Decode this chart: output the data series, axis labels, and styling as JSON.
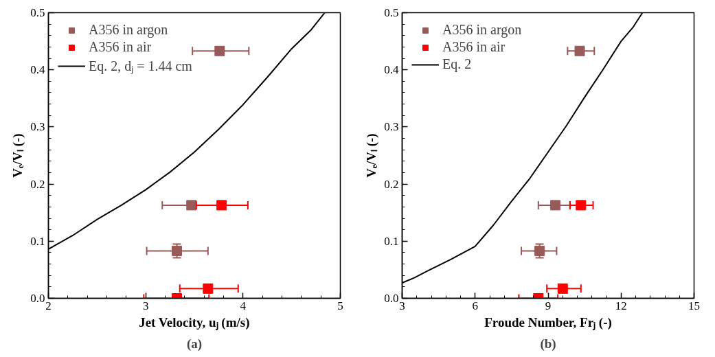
{
  "chart_data": [
    {
      "type": "scatter",
      "xlabel": "Jet Velocity, uⱼ (m/s)",
      "ylabel": "Vₑ/Vₗ (-)",
      "annotations": [
        "(a)"
      ],
      "xlim": [
        2,
        5
      ],
      "xticks": [
        2,
        3,
        4,
        5
      ],
      "ylim": [
        0,
        0.5
      ],
      "yticks": [
        {
          "value": 0,
          "label": "0.0"
        },
        {
          "value": 0.1,
          "label": "0.1"
        },
        {
          "value": 0.2,
          "label": "0.2"
        },
        {
          "value": 0.3,
          "label": "0.3"
        },
        {
          "value": 0.4,
          "label": "0.4"
        },
        {
          "value": 0.5,
          "label": "0.5"
        }
      ],
      "legend": "top left",
      "grid": false,
      "series": [
        {
          "name": "A356 in argon",
          "marker": "square",
          "color": "#985a58",
          "x": [
            3.76,
            3.47,
            3.32
          ],
          "values": [
            0.433,
            0.163,
            0.083
          ],
          "xerrors": [
            [
              3.48,
              4.06
            ],
            [
              3.17,
              3.5
            ],
            [
              3.01,
              3.64
            ]
          ],
          "errors": [
            null,
            null,
            0.012
          ]
        },
        {
          "name": "A356 in air",
          "marker": "square",
          "color": "#ff0000",
          "x": [
            3.78,
            3.64,
            3.32
          ],
          "values": [
            0.163,
            0.017,
            0.0
          ],
          "xerrors": [
            [
              3.52,
              4.05
            ],
            [
              3.35,
              3.95
            ],
            [
              2.98,
              3.65
            ]
          ]
        },
        {
          "name": "Eq. 2, dⱼ = 1.44 cm",
          "type": "line",
          "color": "#000000",
          "x": [
            2,
            2.25,
            2.5,
            2.75,
            3,
            3.25,
            3.5,
            3.75,
            4,
            4.25,
            4.5,
            4.7,
            4.84
          ],
          "values": [
            0.086,
            0.11,
            0.138,
            0.163,
            0.19,
            0.221,
            0.256,
            0.296,
            0.339,
            0.387,
            0.437,
            0.47,
            0.5
          ]
        }
      ]
    },
    {
      "type": "scatter",
      "xlabel": "Froude Number, Frⱼ (-)",
      "ylabel": "Vₑ/Vₗ (-)",
      "annotations": [
        "(b)"
      ],
      "xlim": [
        3,
        15
      ],
      "xticks": [
        3,
        6,
        9,
        12,
        15
      ],
      "ylim": [
        0,
        0.5
      ],
      "yticks": [
        {
          "value": 0,
          "label": "0.0"
        },
        {
          "value": 0.1,
          "label": "0.1"
        },
        {
          "value": 0.2,
          "label": "0.2"
        },
        {
          "value": 0.3,
          "label": "0.3"
        },
        {
          "value": 0.4,
          "label": "0.4"
        },
        {
          "value": 0.5,
          "label": "0.5"
        }
      ],
      "legend": "top left",
      "grid": false,
      "series": [
        {
          "name": "A356 in argon",
          "marker": "square",
          "color": "#985a58",
          "x": [
            10.3,
            9.3,
            8.65
          ],
          "values": [
            0.433,
            0.163,
            0.083
          ],
          "xerrors": [
            [
              9.8,
              10.9
            ],
            [
              8.6,
              9.9
            ],
            [
              7.9,
              9.35
            ]
          ],
          "errors": [
            null,
            null,
            0.012
          ]
        },
        {
          "name": "A356 in air",
          "marker": "square",
          "color": "#ff0000",
          "x": [
            10.35,
            9.6,
            8.6
          ],
          "values": [
            0.163,
            0.017,
            0.0
          ],
          "xerrors": [
            [
              9.9,
              10.85
            ],
            [
              8.95,
              10.35
            ],
            [
              7.8,
              9.4
            ]
          ]
        },
        {
          "name": "Eq. 2",
          "type": "line",
          "color": "#000000",
          "x": [
            3,
            3.5,
            4,
            5,
            6,
            6.75,
            7.5,
            8.25,
            9,
            9.75,
            10.5,
            11.25,
            12,
            12.5,
            12.88
          ],
          "values": [
            0.027,
            0.036,
            0.047,
            0.068,
            0.091,
            0.128,
            0.17,
            0.21,
            0.256,
            0.302,
            0.352,
            0.4,
            0.45,
            0.475,
            0.5
          ]
        }
      ]
    }
  ]
}
